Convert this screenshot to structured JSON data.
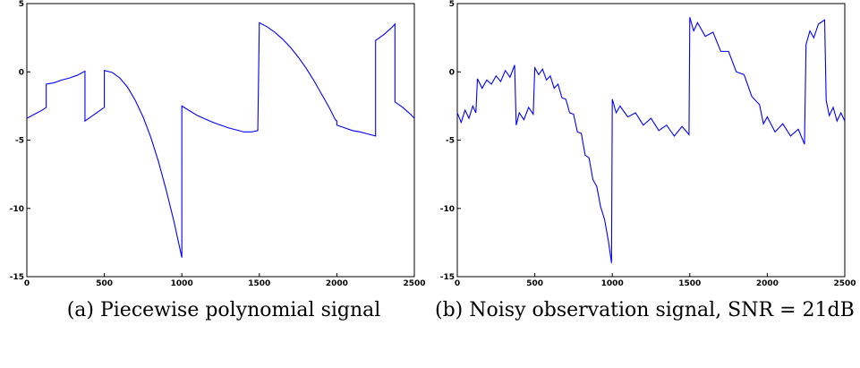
{
  "chart_data": [
    {
      "type": "line",
      "caption": "(a) Piecewise polynomial signal",
      "color": "#0000ff",
      "x": [
        0,
        50,
        100,
        125,
        125,
        175,
        225,
        275,
        325,
        375,
        375,
        425,
        475,
        500,
        500,
        550,
        600,
        650,
        700,
        750,
        800,
        850,
        900,
        950,
        1000,
        1000,
        1100,
        1200,
        1300,
        1400,
        1450,
        1490,
        1500,
        1550,
        1600,
        1650,
        1700,
        1750,
        1800,
        1850,
        1900,
        1950,
        1990,
        2000,
        2000,
        2050,
        2100,
        2150,
        2200,
        2250,
        2250,
        2300,
        2350,
        2375,
        2375,
        2425,
        2475,
        2500
      ],
      "values": [
        -3.4,
        -3.1,
        -2.8,
        -2.6,
        -0.9,
        -0.8,
        -0.6,
        -0.45,
        -0.25,
        0.05,
        -3.6,
        -3.2,
        -2.8,
        -2.6,
        0.1,
        -0.04,
        -0.45,
        -1.13,
        -2.1,
        -3.3,
        -4.8,
        -6.6,
        -8.7,
        -11.0,
        -13.6,
        -2.5,
        -3.2,
        -3.7,
        -4.1,
        -4.4,
        -4.4,
        -4.3,
        3.6,
        3.3,
        2.9,
        2.4,
        1.8,
        1.1,
        0.3,
        -0.6,
        -1.6,
        -2.6,
        -3.5,
        -3.6,
        -3.9,
        -4.1,
        -4.3,
        -4.4,
        -4.55,
        -4.7,
        2.3,
        2.7,
        3.2,
        3.5,
        -2.2,
        -2.6,
        -3.1,
        -3.4
      ],
      "xlim": [
        0,
        2500
      ],
      "ylim": [
        -15,
        5
      ],
      "xticks": [
        0,
        500,
        1000,
        1500,
        2000,
        2500
      ],
      "yticks": [
        -15,
        -10,
        -5,
        0,
        5
      ]
    },
    {
      "type": "line",
      "caption": "(b) Noisy observation signal, SNR = 21dB",
      "color": "#0000ff",
      "x": [
        0,
        25,
        50,
        75,
        100,
        120,
        130,
        160,
        190,
        220,
        250,
        280,
        310,
        340,
        370,
        380,
        400,
        430,
        460,
        490,
        500,
        525,
        550,
        575,
        600,
        625,
        650,
        675,
        700,
        725,
        750,
        775,
        800,
        825,
        850,
        875,
        900,
        925,
        950,
        975,
        995,
        1000,
        1025,
        1050,
        1100,
        1150,
        1200,
        1250,
        1300,
        1350,
        1400,
        1450,
        1495,
        1500,
        1525,
        1550,
        1600,
        1650,
        1700,
        1750,
        1800,
        1850,
        1900,
        1950,
        1975,
        2000,
        2050,
        2100,
        2150,
        2200,
        2240,
        2250,
        2275,
        2300,
        2330,
        2370,
        2380,
        2400,
        2425,
        2450,
        2475,
        2500
      ],
      "values": [
        -3.0,
        -3.7,
        -2.8,
        -3.4,
        -2.5,
        -3.0,
        -0.5,
        -1.2,
        -0.6,
        -0.9,
        -0.3,
        -0.7,
        0.1,
        -0.4,
        0.5,
        -3.9,
        -3.0,
        -3.5,
        -2.6,
        -3.1,
        0.3,
        -0.2,
        0.2,
        -0.6,
        -0.3,
        -1.2,
        -0.9,
        -1.9,
        -2.0,
        -3.0,
        -3.1,
        -4.4,
        -4.5,
        -6.1,
        -6.3,
        -7.9,
        -8.4,
        -9.9,
        -10.8,
        -12.4,
        -14.0,
        -2.0,
        -3.0,
        -2.5,
        -3.3,
        -3.0,
        -3.9,
        -3.4,
        -4.3,
        -3.9,
        -4.7,
        -4.0,
        -4.6,
        4.0,
        3.0,
        3.6,
        2.6,
        2.9,
        1.5,
        1.5,
        0.0,
        -0.2,
        -1.8,
        -2.4,
        -3.8,
        -3.3,
        -4.4,
        -3.8,
        -4.7,
        -4.2,
        -5.3,
        2.0,
        3.0,
        2.5,
        3.5,
        3.8,
        -2.1,
        -3.2,
        -2.6,
        -3.6,
        -3.0,
        -3.6
      ],
      "xlim": [
        0,
        2500
      ],
      "ylim": [
        -15,
        5
      ],
      "xticks": [
        0,
        500,
        1000,
        1500,
        2000,
        2500
      ],
      "yticks": [
        -15,
        -10,
        -5,
        0,
        5
      ]
    }
  ]
}
